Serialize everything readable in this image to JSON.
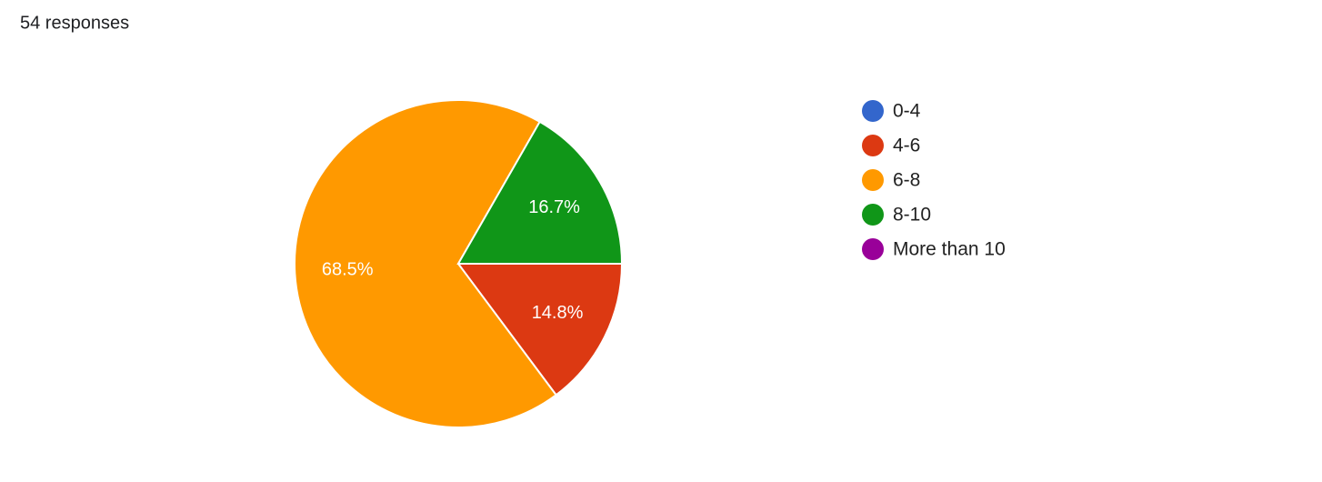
{
  "chart_data": {
    "type": "pie",
    "title": "54 responses",
    "categories": [
      "0-4",
      "4-6",
      "6-8",
      "8-10",
      "More than 10"
    ],
    "values": [
      0,
      14.8,
      68.5,
      16.7,
      0
    ],
    "value_labels": [
      null,
      "14.8%",
      "68.5%",
      "16.7%",
      null
    ],
    "colors": [
      "#3366cc",
      "#dc3912",
      "#ff9900",
      "#109618",
      "#990099"
    ],
    "legend": "right"
  }
}
